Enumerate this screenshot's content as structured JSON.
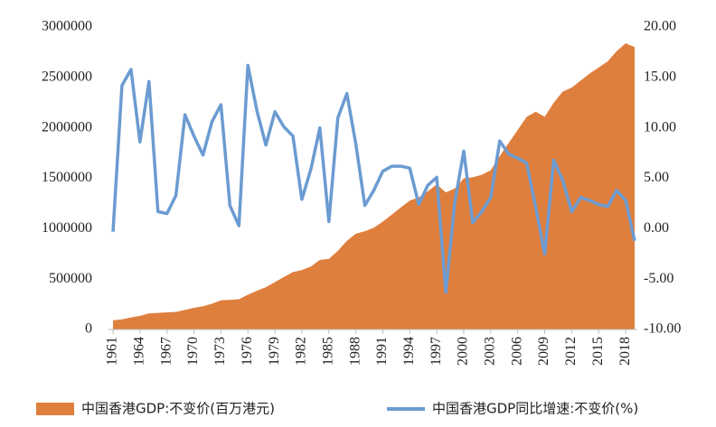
{
  "chart_data": {
    "type": "area-line",
    "x": [
      1961,
      1962,
      1963,
      1964,
      1965,
      1966,
      1967,
      1968,
      1969,
      1970,
      1971,
      1972,
      1973,
      1974,
      1975,
      1976,
      1977,
      1978,
      1979,
      1980,
      1981,
      1982,
      1983,
      1984,
      1985,
      1986,
      1987,
      1988,
      1989,
      1990,
      1991,
      1992,
      1993,
      1994,
      1995,
      1996,
      1997,
      1998,
      1999,
      2000,
      2001,
      2002,
      2003,
      2004,
      2005,
      2006,
      2007,
      2008,
      2009,
      2010,
      2011,
      2012,
      2013,
      2014,
      2015,
      2016,
      2017,
      2018,
      2019
    ],
    "xlim": [
      1961,
      2019
    ],
    "xticks": [
      1961,
      1964,
      1967,
      1970,
      1973,
      1976,
      1979,
      1982,
      1985,
      1988,
      1991,
      1994,
      1997,
      2000,
      2003,
      2006,
      2009,
      2012,
      2015,
      2018
    ],
    "ylim": [
      0,
      3000000
    ],
    "yticks": [
      0,
      500000,
      1000000,
      1500000,
      2000000,
      2500000,
      3000000
    ],
    "y2lim": [
      -10,
      20
    ],
    "y2ticks": [
      {
        "value": -10,
        "label": "-10.00"
      },
      {
        "value": -5,
        "label": "-5.00"
      },
      {
        "value": 0,
        "label": "0.00"
      },
      {
        "value": 5,
        "label": "5.00"
      },
      {
        "value": 10,
        "label": "10.00"
      },
      {
        "value": 15,
        "label": "15.00"
      },
      {
        "value": 20,
        "label": "20.00"
      }
    ],
    "legend": "bottom",
    "series": [
      {
        "name": "中国香港GDP:不变价(百万港元)",
        "color": "#df7f3e",
        "kind": "area",
        "values": [
          90000,
          100000,
          120000,
          135000,
          160000,
          165000,
          170000,
          175000,
          195000,
          215000,
          230000,
          255000,
          290000,
          295000,
          300000,
          345000,
          385000,
          420000,
          470000,
          520000,
          570000,
          590000,
          625000,
          690000,
          700000,
          780000,
          880000,
          950000,
          975000,
          1010000,
          1070000,
          1140000,
          1210000,
          1280000,
          1310000,
          1370000,
          1440000,
          1360000,
          1400000,
          1500000,
          1510000,
          1535000,
          1580000,
          1720000,
          1850000,
          1980000,
          2110000,
          2160000,
          2110000,
          2250000,
          2360000,
          2400000,
          2470000,
          2540000,
          2600000,
          2660000,
          2760000,
          2840000,
          2800000
        ]
      },
      {
        "name": "中国香港GDP同比增速:不变价(%)",
        "color": "#6b9bd1",
        "kind": "line",
        "axis": "y2",
        "values": [
          -0.3,
          14.2,
          15.8,
          8.6,
          14.6,
          1.7,
          1.5,
          3.3,
          11.3,
          9.2,
          7.3,
          10.6,
          12.3,
          2.3,
          0.3,
          16.2,
          11.7,
          8.3,
          11.6,
          10.1,
          9.2,
          2.9,
          5.9,
          10.0,
          0.7,
          11.0,
          13.4,
          8.4,
          2.3,
          3.8,
          5.7,
          6.2,
          6.2,
          6.0,
          2.4,
          4.3,
          5.1,
          -6.3,
          2.6,
          7.7,
          0.6,
          1.7,
          3.1,
          8.7,
          7.4,
          7.0,
          6.5,
          2.1,
          -2.5,
          6.8,
          4.8,
          1.7,
          3.1,
          2.8,
          2.4,
          2.2,
          3.8,
          2.8,
          -1.2
        ]
      }
    ]
  }
}
